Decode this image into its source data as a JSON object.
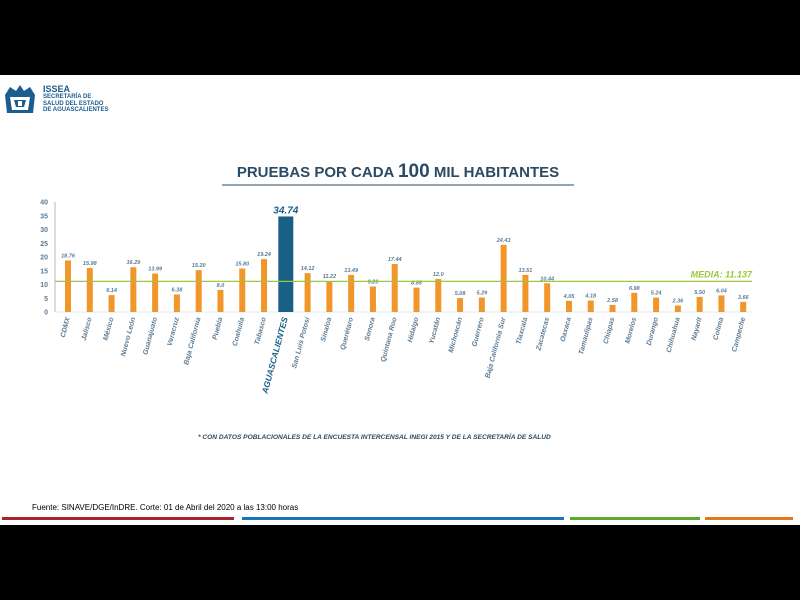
{
  "header": {
    "org_name": "ISSEA",
    "org_line1": "SECRETARÍA DE",
    "org_line2": "SALUD DEL ESTADO",
    "org_line3": "DE AGUASCALIENTES"
  },
  "chart_data": {
    "type": "bar",
    "title_pre": "PRUEBAS POR CADA ",
    "title_num": "100",
    "title_post": " MIL HABITANTES",
    "ylim": [
      0,
      40
    ],
    "yticks": [
      0,
      5,
      10,
      15,
      20,
      25,
      30,
      35,
      40
    ],
    "categories": [
      "CDMX",
      "Jalisco",
      "México",
      "Nuevo León",
      "Guanajuato",
      "Veracruz",
      "Baja California",
      "Puebla",
      "Coahuila",
      "Tabasco",
      "AGUASCALIENTES",
      "San Luis Potosí",
      "Sinaloa",
      "Querétaro",
      "Sonora",
      "Quintana Roo",
      "Hidalgo",
      "Yucatán",
      "Michoacán",
      "Guerrero",
      "Baja California Sur",
      "Tlaxcala",
      "Zacatecas",
      "Oaxaca",
      "Tamaulipas",
      "Chiapas",
      "Morelos",
      "Durango",
      "Chihuahua",
      "Nayarit",
      "Colima",
      "Campeche"
    ],
    "values": [
      18.76,
      15.98,
      6.14,
      16.29,
      13.99,
      6.38,
      15.2,
      8.0,
      15.8,
      19.24,
      34.74,
      14.12,
      11.22,
      13.49,
      9.26,
      17.44,
      8.85,
      12.0,
      5.08,
      5.29,
      24.43,
      13.51,
      10.44,
      4.05,
      4.18,
      2.58,
      6.98,
      5.24,
      2.36,
      5.5,
      6.04,
      3.66
    ],
    "labels": [
      "18.76",
      "15.98",
      "6.14",
      "16.29",
      "13.99",
      "6.38",
      "15.20",
      "8.0",
      "15.80",
      "19.24",
      "34.74",
      "14.12",
      "11.22",
      "13.49",
      "9.26",
      "17.44",
      "8.85",
      "12.0",
      "5.08",
      "5.29",
      "24.43",
      "13.51",
      "10.44",
      "4.05",
      "4.18",
      "2.58",
      "6.98",
      "5.24",
      "2.36",
      "5.50",
      "6.04",
      "3.66"
    ],
    "highlight": "AGUASCALIENTES",
    "mean": 11.137,
    "mean_label": "MEDIA: 11.137",
    "footnote": "* CON DATOS POBLACIONALES DE LA ENCUESTA INTERCENSAL INEGI 2015 Y DE LA SECRETARÍA DE SALUD",
    "colors": {
      "bar": "#f0962a",
      "highlight": "#1a5f86",
      "mean": "#9bc83c",
      "title": "#2b4a63",
      "text": "#5a7b96"
    }
  },
  "footer": {
    "source": "Fuente: SINAVE/DGE/InDRE.  Corte: 01 de Abril del 2020 a las 13:00 horas",
    "stripe_colors": [
      "#a8232f",
      "#1a75b8",
      "#5aab2c",
      "#e27a1b"
    ]
  }
}
